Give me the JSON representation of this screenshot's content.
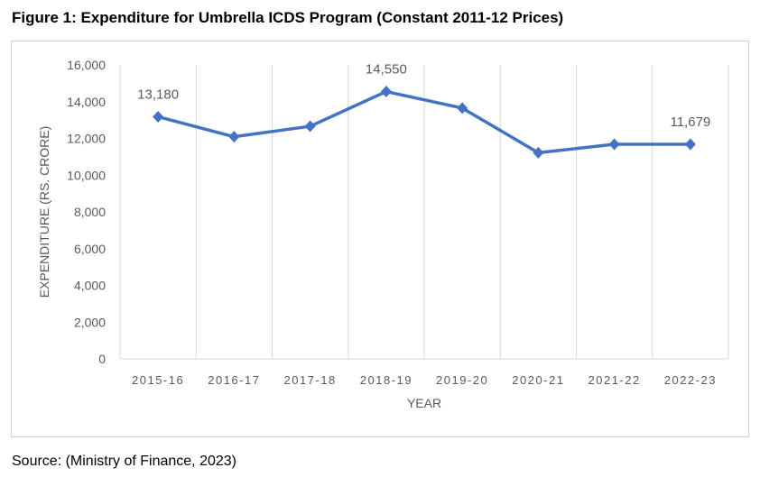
{
  "title": "Figure 1: Expenditure for Umbrella ICDS Program (Constant 2011-12 Prices)",
  "source": "Source: (Ministry of Finance, 2023)",
  "chart_data": {
    "type": "line",
    "title": "Figure 1: Expenditure for Umbrella ICDS Program (Constant 2011-12 Prices)",
    "xlabel": "YEAR",
    "ylabel": "EXPENDITURE (RS. CRORE)",
    "categories": [
      "2015-16",
      "2016-17",
      "2017-18",
      "2018-19",
      "2019-20",
      "2020-21",
      "2021-22",
      "2022-23"
    ],
    "series": [
      {
        "name": "Expenditure",
        "color": "#4472C4",
        "values": [
          13180,
          12090,
          12660,
          14550,
          13650,
          11220,
          11680,
          11679
        ]
      }
    ],
    "data_labels": [
      {
        "index": 0,
        "text": "13,180"
      },
      {
        "index": 3,
        "text": "14,550"
      },
      {
        "index": 7,
        "text": "11,679"
      }
    ],
    "ylim": [
      0,
      16000
    ],
    "yticks": [
      0,
      2000,
      4000,
      6000,
      8000,
      10000,
      12000,
      14000,
      16000
    ],
    "ytick_labels": [
      "0",
      "2,000",
      "4,000",
      "6,000",
      "8,000",
      "10,000",
      "12,000",
      "14,000",
      "16,000"
    ],
    "grid": "vertical",
    "legend": "none"
  }
}
